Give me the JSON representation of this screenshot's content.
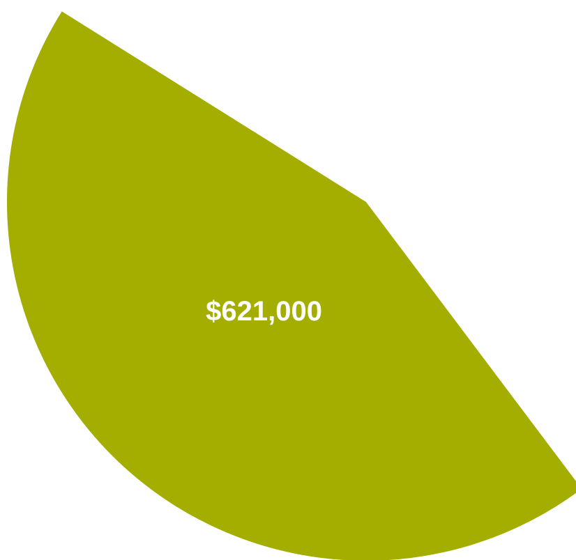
{
  "chart_data": {
    "type": "pie",
    "title": "",
    "slices": [
      {
        "value": 621000,
        "label": "$621,000",
        "color": "#a3ae00"
      }
    ],
    "slice_angle_degrees": 159,
    "legend": "none"
  }
}
